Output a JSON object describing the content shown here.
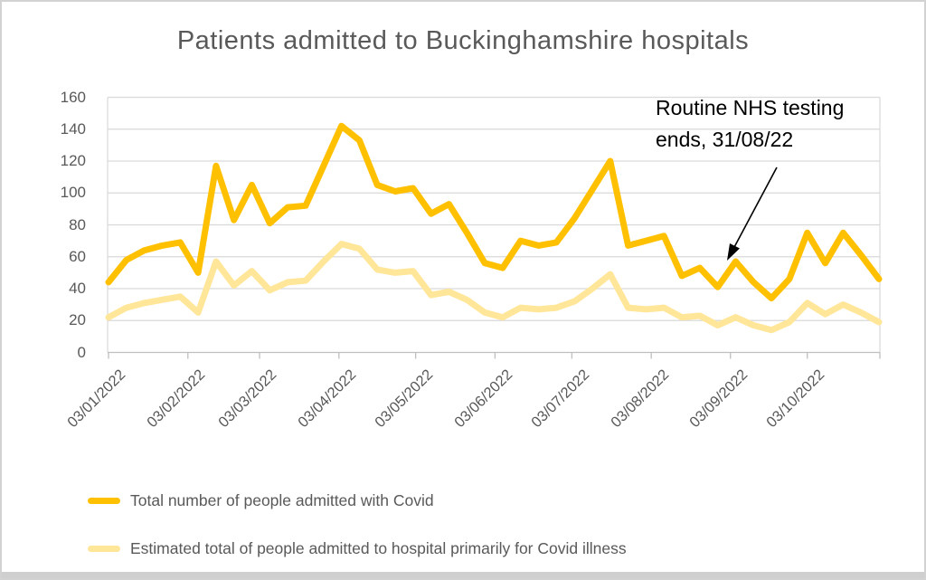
{
  "chart": {
    "annotation_line1": "Routine NHS testing",
    "annotation_line2": "ends, 31/08/22"
  },
  "chart_data": {
    "type": "line",
    "title": "Patients admitted to Buckinghamshire hospitals",
    "xlabel": "",
    "ylabel": "",
    "ylim": [
      0,
      160
    ],
    "y_tick_step": 20,
    "grid": true,
    "legend_position": "bottom",
    "x_tick_labels": [
      "03/01/2022",
      "03/02/2022",
      "03/03/2022",
      "03/04/2022",
      "03/05/2022",
      "03/06/2022",
      "03/07/2022",
      "03/08/2022",
      "03/09/2022",
      "03/10/2022"
    ],
    "x_tick_week_offsets": [
      0,
      4.43,
      8.43,
      12.86,
      17.14,
      21.57,
      25.86,
      30.29,
      34.71,
      39
    ],
    "x_unit": "weeks starting 03/01/2022",
    "weeks_total": 43,
    "series": [
      {
        "name": "Total number of people admitted with Covid",
        "color": "#FFC000",
        "values": [
          44,
          58,
          64,
          67,
          69,
          50,
          117,
          83,
          105,
          81,
          91,
          92,
          117,
          142,
          133,
          105,
          101,
          103,
          87,
          93,
          75,
          56,
          53,
          70,
          67,
          69,
          84,
          102,
          120,
          67,
          70,
          73,
          48,
          53,
          41,
          57,
          44,
          34,
          46,
          75,
          56,
          75,
          61,
          46
        ]
      },
      {
        "name": "Estimated total of people admitted to hospital primarily for Covid illness",
        "color": "#FFE699",
        "values": [
          22,
          28,
          31,
          33,
          35,
          25,
          57,
          42,
          51,
          39,
          44,
          45,
          57,
          68,
          65,
          52,
          50,
          51,
          36,
          38,
          33,
          25,
          22,
          28,
          27,
          28,
          32,
          40,
          49,
          28,
          27,
          28,
          22,
          23,
          17,
          22,
          17,
          14,
          19,
          31,
          24,
          30,
          25,
          19
        ]
      }
    ],
    "annotation": {
      "text": "Routine NHS testing ends, 31/08/22",
      "arrow_points_to_week": 35
    },
    "axis_color": "#BFBFBF",
    "grid_color": "#D9D9D9",
    "text_color": "#595959"
  }
}
